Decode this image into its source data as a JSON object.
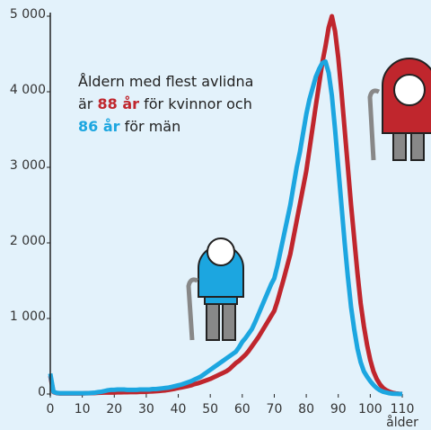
{
  "chart_data": {
    "type": "line",
    "x": [
      0,
      1,
      2,
      3,
      4,
      5,
      6,
      7,
      8,
      9,
      10,
      11,
      12,
      13,
      14,
      15,
      16,
      17,
      18,
      19,
      20,
      21,
      22,
      23,
      24,
      25,
      26,
      27,
      28,
      29,
      30,
      31,
      32,
      33,
      34,
      35,
      36,
      37,
      38,
      39,
      40,
      41,
      42,
      43,
      44,
      45,
      46,
      47,
      48,
      49,
      50,
      51,
      52,
      53,
      54,
      55,
      56,
      57,
      58,
      59,
      60,
      61,
      62,
      63,
      64,
      65,
      66,
      67,
      68,
      69,
      70,
      71,
      72,
      73,
      74,
      75,
      76,
      77,
      78,
      79,
      80,
      81,
      82,
      83,
      84,
      85,
      86,
      87,
      88,
      89,
      90,
      91,
      92,
      93,
      94,
      95,
      96,
      97,
      98,
      99,
      100,
      101,
      102,
      103,
      104,
      105,
      106,
      107,
      108,
      109,
      110
    ],
    "series": [
      {
        "color": "#1ca6e0",
        "values": [
          270,
          30,
          15,
          10,
          10,
          10,
          10,
          10,
          10,
          10,
          10,
          10,
          12,
          15,
          18,
          25,
          30,
          40,
          50,
          55,
          55,
          60,
          60,
          60,
          55,
          55,
          55,
          55,
          60,
          60,
          60,
          60,
          65,
          65,
          70,
          75,
          80,
          85,
          95,
          105,
          115,
          125,
          140,
          155,
          170,
          190,
          210,
          230,
          260,
          290,
          320,
          350,
          380,
          410,
          440,
          470,
          500,
          530,
          560,
          620,
          690,
          740,
          800,
          860,
          950,
          1050,
          1150,
          1250,
          1350,
          1450,
          1530,
          1700,
          1900,
          2100,
          2300,
          2500,
          2750,
          3000,
          3200,
          3450,
          3700,
          3900,
          4050,
          4200,
          4300,
          4380,
          4400,
          4250,
          3950,
          3500,
          3000,
          2500,
          2000,
          1550,
          1150,
          850,
          600,
          420,
          300,
          230,
          170,
          120,
          80,
          50,
          30,
          20,
          10,
          5,
          3,
          1,
          0
        ]
      },
      {
        "color": "#c0262d",
        "values": [
          240,
          25,
          12,
          8,
          8,
          8,
          8,
          8,
          8,
          8,
          8,
          10,
          10,
          12,
          14,
          16,
          18,
          20,
          20,
          20,
          20,
          22,
          22,
          24,
          24,
          25,
          25,
          26,
          28,
          28,
          30,
          32,
          34,
          37,
          40,
          44,
          48,
          55,
          62,
          70,
          80,
          88,
          96,
          105,
          115,
          130,
          140,
          155,
          170,
          185,
          200,
          220,
          240,
          260,
          280,
          300,
          330,
          370,
          410,
          440,
          480,
          520,
          570,
          630,
          690,
          750,
          820,
          890,
          960,
          1030,
          1100,
          1230,
          1380,
          1530,
          1690,
          1850,
          2070,
          2290,
          2510,
          2730,
          2950,
          3240,
          3530,
          3820,
          4100,
          4380,
          4600,
          4850,
          5000,
          4800,
          4450,
          4000,
          3500,
          3000,
          2500,
          2050,
          1600,
          1200,
          900,
          650,
          450,
          300,
          200,
          130,
          80,
          50,
          30,
          15,
          8,
          3,
          1
        ]
      }
    ],
    "xlim": [
      0,
      110
    ],
    "xticks": [
      0,
      10,
      20,
      30,
      40,
      50,
      60,
      70,
      80,
      90,
      100,
      110
    ],
    "ylim": [
      0,
      5000
    ],
    "yticks": [
      0,
      {
        "value": 1000,
        "label": "1 000"
      },
      {
        "value": 2000,
        "label": "2 000"
      },
      {
        "value": 3000,
        "label": "3 000"
      },
      {
        "value": 4000,
        "label": "4 000"
      },
      {
        "value": 5000,
        "label": "5 000"
      }
    ],
    "xlabel": "ålder",
    "annotation": [
      "Åldern med flest avlidna",
      "är",
      "88 år",
      "för kvinnor och",
      "86 år",
      "för män"
    ]
  }
}
